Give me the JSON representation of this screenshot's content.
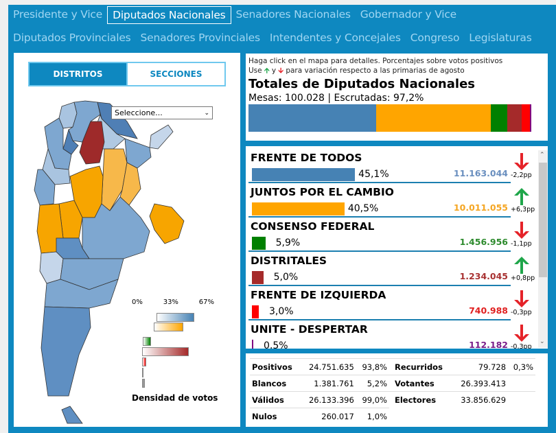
{
  "nav": {
    "row1": [
      "Presidente y Vice",
      "Diputados Nacionales",
      "Senadores Nacionales",
      "Gobernador y Vice"
    ],
    "row2": [
      "Diputados Provinciales",
      "Senadores Provinciales",
      "Intendentes y Concejales",
      "Congreso",
      "Legislaturas"
    ],
    "active": "Diputados Nacionales"
  },
  "map_panel": {
    "tabs": [
      "DISTRITOS",
      "SECCIONES"
    ],
    "active_tab": "DISTRITOS",
    "select": {
      "value": "Seleccione..."
    },
    "legend": {
      "ticks": [
        "0%",
        "33%",
        "67%"
      ],
      "title": "Densidad de votos"
    }
  },
  "info": {
    "hint1": "Haga click en el mapa para detalles. Porcentajes sobre votos positivos",
    "hint2_pre": "Use",
    "hint2_mid": "y",
    "hint2_post": "para variación respecto a las primarias de agosto",
    "title": "Totales de Diputados Nacionales",
    "mesas": "Mesas: 100.028 | Escrutadas: 97,2%"
  },
  "parties": [
    {
      "name": "FRENTE DE TODOS",
      "pct": "45,1%",
      "pct_value": 45.1,
      "votes": "11.163.044",
      "change": "-2,2pp",
      "direction": "down",
      "color": "#4682b4",
      "votes_color": "#6a8fbf"
    },
    {
      "name": "JUNTOS POR EL CAMBIO",
      "pct": "40,5%",
      "pct_value": 40.5,
      "votes": "10.011.055",
      "change": "+6,3pp",
      "direction": "up",
      "color": "#ffa500",
      "votes_color": "#f5a623"
    },
    {
      "name": "CONSENSO FEDERAL",
      "pct": "5,9%",
      "pct_value": 5.9,
      "votes": "1.456.956",
      "change": "-1,1pp",
      "direction": "down",
      "color": "#008000",
      "votes_color": "#2e8b2e"
    },
    {
      "name": "DISTRITALES",
      "pct": "5,0%",
      "pct_value": 5.0,
      "votes": "1.234.045",
      "change": "+0,8pp",
      "direction": "up",
      "color": "#a52a2a",
      "votes_color": "#a83232"
    },
    {
      "name": "FRENTE DE IZQUIERDA",
      "pct": "3,0%",
      "pct_value": 3.0,
      "votes": "740.988",
      "change": "-0,3pp",
      "direction": "down",
      "color": "#ff0000",
      "votes_color": "#e02020"
    },
    {
      "name": "UNITE - DESPERTAR",
      "pct": "0,5%",
      "pct_value": 0.5,
      "votes": "112.182",
      "change": "-0,3pp",
      "direction": "down",
      "color": "#800080",
      "votes_color": "#7a1f8a"
    }
  ],
  "stats": [
    [
      "Positivos",
      "24.751.635",
      "93,8%",
      "Recurridos",
      "79.728",
      "0,3%"
    ],
    [
      "Blancos",
      "1.381.761",
      "5,2%",
      "Votantes",
      "26.393.413",
      ""
    ],
    [
      "Válidos",
      "26.133.396",
      "99,0%",
      "Electores",
      "33.856.629",
      ""
    ],
    [
      "Nulos",
      "260.017",
      "1,0%",
      "",
      "",
      ""
    ]
  ],
  "colors": {
    "frame": "#0e88c0",
    "up": "#1fa64a",
    "down": "#e52329"
  }
}
